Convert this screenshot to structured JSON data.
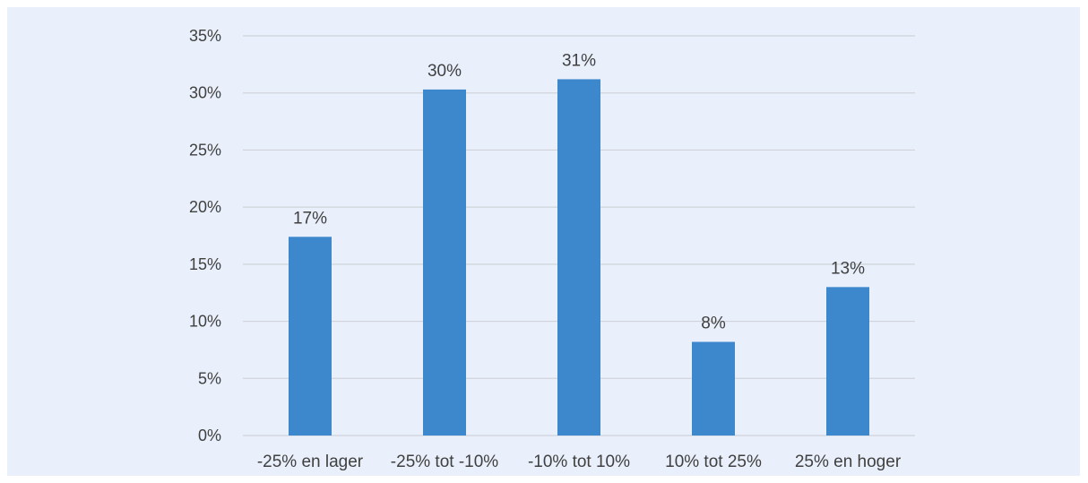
{
  "chart_data": {
    "type": "bar",
    "categories": [
      "-25% en lager",
      "-25% tot -10%",
      "-10% tot 10%",
      "10% tot 25%",
      "25% en hoger"
    ],
    "values": [
      17.4,
      30.3,
      31.2,
      8.2,
      13.0
    ],
    "data_labels": [
      "17%",
      "30%",
      "31%",
      "8%",
      "13%"
    ],
    "y_ticks": [
      0,
      5,
      10,
      15,
      20,
      25,
      30,
      35
    ],
    "y_tick_labels": [
      "0%",
      "5%",
      "10%",
      "15%",
      "20%",
      "25%",
      "30%",
      "35%"
    ],
    "ylim": [
      0,
      35
    ],
    "grid": true,
    "legend": "none",
    "bar_color": "#3d88cc",
    "background_color": "#e9f0fb"
  }
}
